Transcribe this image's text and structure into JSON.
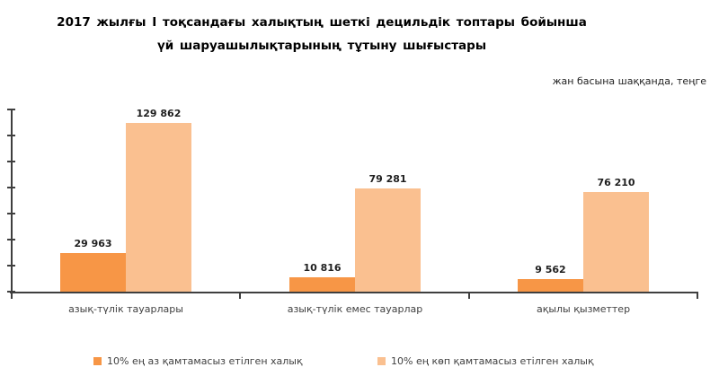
{
  "title": {
    "line1": "2017 жылғы I тоқсандағы халықтың шеткі децильдік топтары бойынша",
    "line2": "үй шаруашылықтарының тұтыну шығыстары"
  },
  "units_note": "жан басына шаққанда, теңге",
  "legend": [
    {
      "label": "10% ең аз қамтамасыз етілген халық",
      "color": "#F79646"
    },
    {
      "label": "10% ең көп қамтамасыз етілген халық",
      "color": "#FAC090"
    }
  ],
  "chart_data": {
    "type": "bar",
    "title": "2017 жылғы I тоқсандағы халықтың шеткі децильдік топтары бойынша үй шаруашылықтарының тұтыну шығыстары",
    "units": "жан басына шаққанда, теңге",
    "categories": [
      "азық-түлік тауарлары",
      "азық-түлік емес тауарлар",
      "ақылы қызметтер"
    ],
    "series": [
      {
        "name": "10% ең аз қамтамасыз етілген халық",
        "color": "#F79646",
        "values": [
          29963,
          10816,
          9562
        ],
        "labels": [
          "29 963",
          "10 816",
          "9 562"
        ]
      },
      {
        "name": "10% ең көп қамтамасыз етілген халық",
        "color": "#FAC090",
        "values": [
          129862,
          79281,
          76210
        ],
        "labels": [
          "129 862",
          "79 281",
          "76 210"
        ]
      }
    ],
    "ylim": [
      0,
      140000
    ],
    "ytick_interval": 20000,
    "ytick_labels_shown": false,
    "grid": false,
    "legend_position": "bottom"
  },
  "colors": {
    "axis": "#3f3f3f",
    "category_text": "#404040",
    "data_label_text": "#1f1f1f",
    "series_dark": "#F79646",
    "series_light": "#FAC090"
  }
}
